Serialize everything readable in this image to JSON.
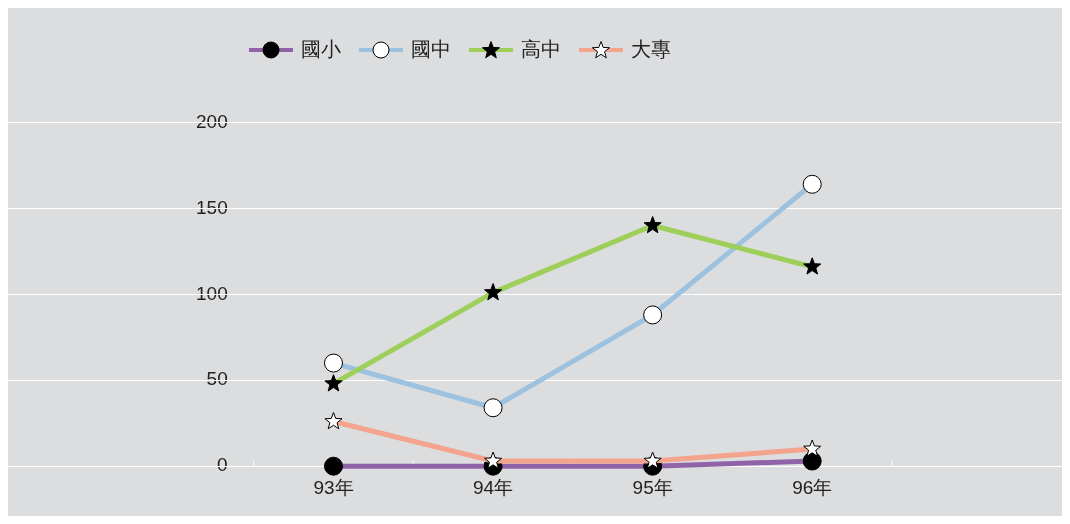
{
  "chart_data": {
    "type": "line",
    "categories": [
      "93年",
      "94年",
      "95年",
      "96年"
    ],
    "series": [
      {
        "name": "國小",
        "color": "#9063a8",
        "values": [
          0,
          0,
          0,
          3
        ],
        "marker": "circle"
      },
      {
        "name": "國中",
        "color": "#9cc2e0",
        "values": [
          60,
          34,
          88,
          164
        ],
        "marker": "circle"
      },
      {
        "name": "高中",
        "color": "#9dcf5a",
        "values": [
          48,
          101,
          140,
          116
        ],
        "marker": "star"
      },
      {
        "name": "大專",
        "color": "#f4a38c",
        "values": [
          26,
          3,
          3,
          10
        ],
        "marker": "star"
      }
    ],
    "ylim": [
      0,
      200
    ],
    "yticks": [
      0,
      50,
      100,
      150,
      200
    ],
    "grid": "y",
    "legend": "top"
  }
}
